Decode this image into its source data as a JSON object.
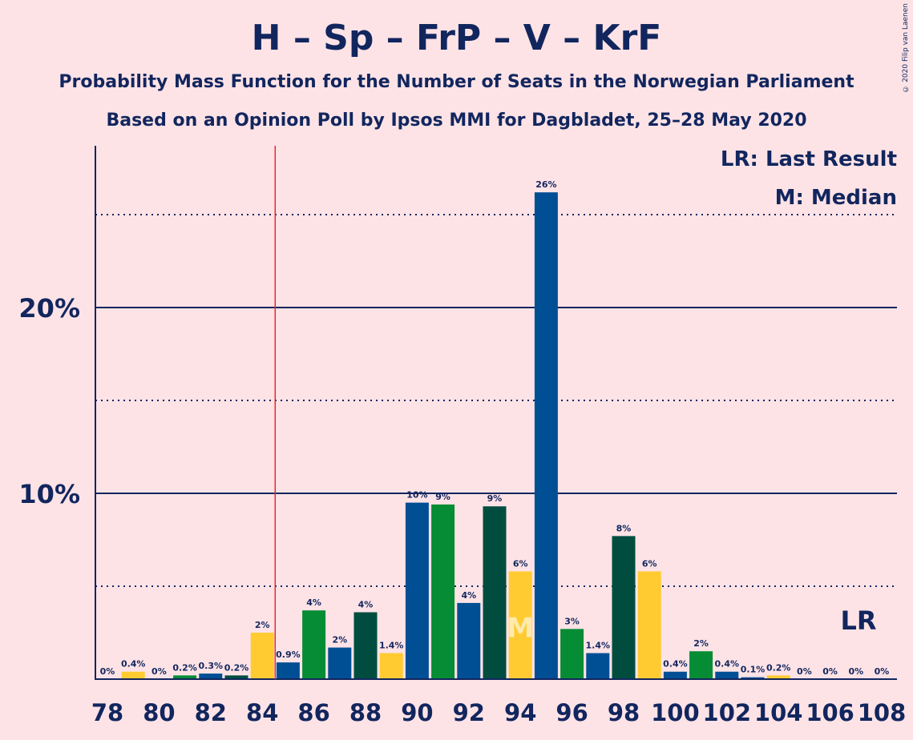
{
  "header": {
    "title": "H – Sp – FrP – V – KrF",
    "subtitle1": "Probability Mass Function for the Number of Seats in the Norwegian Parliament",
    "subtitle2": "Based on an Opinion Poll by Ipsos MMI for Dagbladet, 25–28 May 2020",
    "copyright": "© 2020 Filip van Laenen"
  },
  "legend": {
    "last_result": "LR: Last Result",
    "median": "M: Median"
  },
  "colors": {
    "background": "#FDE3E6",
    "axis": "#12265E",
    "last_result_line": "#E8262B",
    "bar_palette": [
      "#FFCB30",
      "#068C34",
      "#004F94",
      "#004D40"
    ]
  },
  "chart_data": {
    "type": "bar",
    "x": [
      78,
      79,
      80,
      81,
      82,
      83,
      84,
      85,
      86,
      87,
      88,
      89,
      90,
      91,
      92,
      93,
      94,
      95,
      96,
      97,
      98,
      99,
      100,
      101,
      102,
      103,
      104,
      105,
      106,
      107,
      108
    ],
    "values": [
      0,
      0.4,
      0,
      0.2,
      0.3,
      0.2,
      2.5,
      0.9,
      3.7,
      1.7,
      3.6,
      1.4,
      9.5,
      9.4,
      4.1,
      9.3,
      5.8,
      26.2,
      2.7,
      1.4,
      7.7,
      5.8,
      0.4,
      1.5,
      0.4,
      0.1,
      0.2,
      0,
      0,
      0,
      0
    ],
    "data_labels": [
      "0%",
      "0.4%",
      "0%",
      "0.2%",
      "0.3%",
      "0.2%",
      "2%",
      "0.9%",
      "4%",
      "2%",
      "4%",
      "1.4%",
      "10%",
      "9%",
      "4%",
      "9%",
      "6%",
      "26%",
      "3%",
      "1.4%",
      "8%",
      "6%",
      "0.4%",
      "2%",
      "0.4%",
      "0.1%",
      "0.2%",
      "0%",
      "0%",
      "0%",
      "0%"
    ],
    "bar_colors": [
      "#004F94",
      "#FFCB30",
      "#068C34",
      "#068C34",
      "#004F94",
      "#004D40",
      "#FFCB30",
      "#004F94",
      "#068C34",
      "#004F94",
      "#004D40",
      "#FFCB30",
      "#004F94",
      "#068C34",
      "#004F94",
      "#004D40",
      "#FFCB30",
      "#004F94",
      "#068C34",
      "#004F94",
      "#004D40",
      "#FFCB30",
      "#004F94",
      "#068C34",
      "#004F94",
      "#004F94",
      "#FFCB30",
      "#004F94",
      "#068C34",
      "#004F94",
      "#004D40"
    ],
    "x_tick_labels": [
      "78",
      "80",
      "82",
      "84",
      "86",
      "88",
      "90",
      "92",
      "94",
      "96",
      "98",
      "100",
      "102",
      "104",
      "106",
      "108"
    ],
    "y_tick_labels": [
      "10%",
      "20%"
    ],
    "ylim": [
      0,
      28.5
    ],
    "gridlines_major": [
      10,
      20
    ],
    "gridlines_minor": [
      5,
      15,
      25
    ],
    "last_result_seat": 84.5,
    "last_result_label": "LR",
    "median_seat": 94,
    "median_label": "M"
  }
}
